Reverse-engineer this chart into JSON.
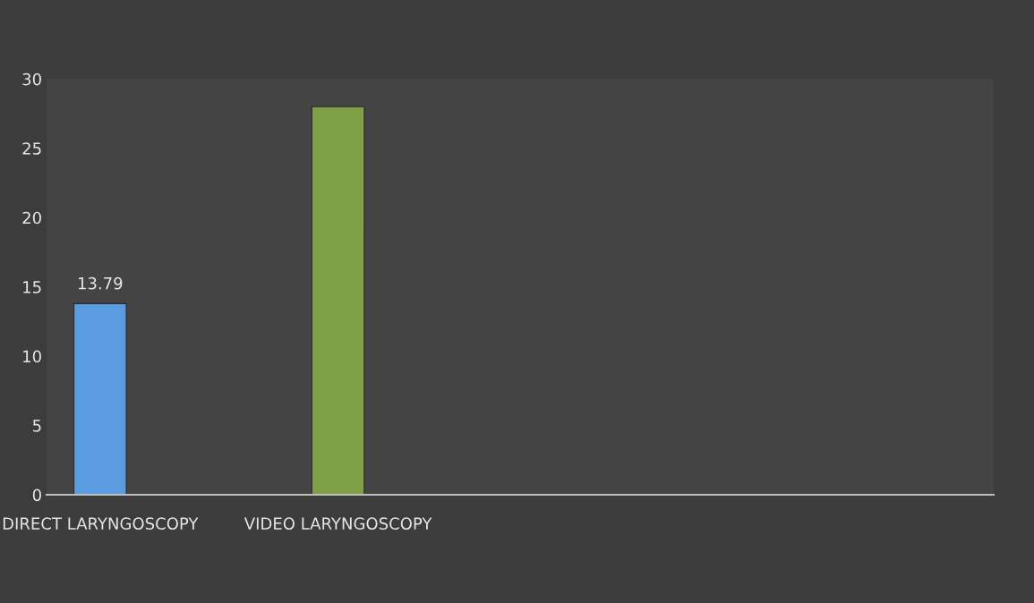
{
  "chart_data": {
    "type": "bar",
    "categories": [
      "DIRECT LARYNGOSCOPY",
      "VIDEO LARYNGOSCOPY",
      null,
      null
    ],
    "values": [
      13.79,
      28,
      null,
      null
    ],
    "colors": [
      "#5b9be0",
      "#7fa046",
      "#5b9be0",
      "#7fa046"
    ],
    "value_labels": [
      "13.79",
      null,
      null,
      null
    ],
    "ylim": [
      0,
      30
    ],
    "yticks": [
      0,
      5,
      10,
      15,
      20,
      25,
      30
    ],
    "grid": false,
    "legend": false
  }
}
